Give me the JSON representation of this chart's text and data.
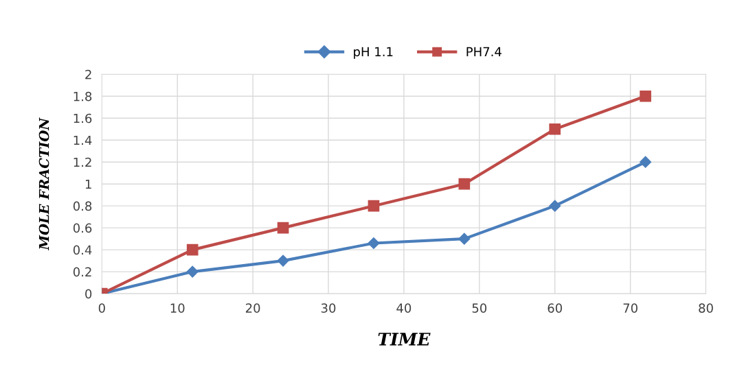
{
  "chart_data": {
    "type": "line",
    "xlabel": "TIME",
    "ylabel": "MOLE FRACTION",
    "x": [
      0,
      12,
      24,
      36,
      48,
      60,
      72
    ],
    "series": [
      {
        "name": "pH 1.1",
        "color": "#4a7ebb",
        "marker": "diamond",
        "values": [
          0,
          0.2,
          0.3,
          0.46,
          0.5,
          0.8,
          1.2
        ]
      },
      {
        "name": "PH7.4",
        "color": "#be4b48",
        "marker": "square",
        "values": [
          0,
          0.4,
          0.6,
          0.8,
          1.0,
          1.5,
          1.8
        ]
      }
    ],
    "xlim": [
      0,
      80
    ],
    "xticks": [
      0,
      10,
      20,
      30,
      40,
      50,
      60,
      70,
      80
    ],
    "ylim": [
      0,
      2
    ],
    "yticks": [
      0,
      0.2,
      0.4,
      0.6,
      0.8,
      1,
      1.2,
      1.4,
      1.6,
      1.8,
      2
    ],
    "grid": true,
    "legend": "top",
    "line_style": "solid"
  }
}
